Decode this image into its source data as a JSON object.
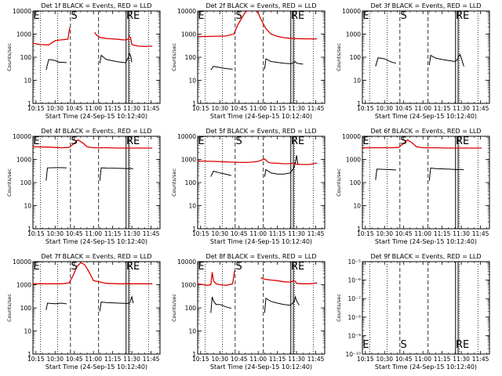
{
  "common": {
    "xlabel": "Start Time (24-Sep-15 10:12:40)",
    "ylabel": "Counts/sec",
    "x_ticks": [
      "10:15",
      "10:30",
      "10:45",
      "11:00",
      "11:15",
      "11:30",
      "11:45"
    ],
    "x_tick_minutes": [
      15,
      30,
      45,
      60,
      75,
      90,
      105
    ],
    "xlim_minutes": [
      12.67,
      112
    ],
    "y_ticks": [
      "1",
      "10",
      "100",
      "1000",
      "10000"
    ],
    "y_tick_values": [
      1,
      10,
      100,
      1000,
      10000
    ],
    "colors": {
      "events": "#000000",
      "lld": "#dd0000"
    },
    "markers": [
      "E",
      "S",
      "RE"
    ],
    "dotted_lines_minutes": [
      18.5,
      32,
      88.5,
      103
    ],
    "dashed_lines_minutes": [
      42,
      64
    ],
    "solid_lines_minutes": [
      85.5,
      87.5
    ]
  },
  "chart_data": [
    {
      "type": "line",
      "title": "Det 1f BLACK = Events, RED = LLD",
      "ylim": [
        1,
        10000
      ],
      "series": [
        {
          "name": "Events",
          "color": "#000000",
          "segments": [
            {
              "x": [
                23,
                25,
                30,
                33,
                36,
                39
              ],
              "y": [
                28,
                80,
                72,
                60,
                60,
                58
              ]
            },
            {
              "x": [
                65,
                66,
                70,
                75,
                80,
                85,
                87,
                88,
                89,
                90
              ],
              "y": [
                55,
                120,
                80,
                70,
                62,
                58,
                90,
                140,
                120,
                60
              ]
            }
          ]
        },
        {
          "name": "LLD",
          "color": "#dd0000",
          "segments": [
            {
              "x": [
                12.7,
                18,
                25,
                30,
                35,
                40,
                41.5
              ],
              "y": [
                400,
                350,
                340,
                520,
                560,
                600,
                2000
              ]
            },
            {
              "x": [
                61,
                62,
                65,
                70,
                75,
                80,
                83,
                85,
                87,
                88,
                89,
                90,
                95,
                100,
                106
              ],
              "y": [
                1200,
                950,
                720,
                640,
                620,
                590,
                560,
                560,
                600,
                800,
                700,
                350,
                300,
                290,
                300
              ]
            }
          ]
        }
      ]
    },
    {
      "type": "line",
      "title": "Det 2f BLACK = Events, RED = LLD",
      "ylim": [
        1,
        10000
      ],
      "series": [
        {
          "name": "Events",
          "color": "#000000",
          "segments": [
            {
              "x": [
                23,
                25,
                30,
                35,
                40
              ],
              "y": [
                28,
                40,
                36,
                32,
                30
              ]
            },
            {
              "x": [
                65,
                66,
                70,
                80,
                86,
                88,
                89,
                90,
                95
              ],
              "y": [
                30,
                85,
                65,
                55,
                52,
                60,
                65,
                55,
                50
              ]
            }
          ]
        },
        {
          "name": "LLD",
          "color": "#dd0000",
          "segments": [
            {
              "x": [
                12.7,
                25,
                35,
                41,
                44,
                50,
                56,
                60,
                63,
                66,
                70,
                75,
                80,
                85,
                90,
                100,
                106
              ],
              "y": [
                780,
                800,
                830,
                1000,
                2500,
                9000,
                13000,
                8000,
                3500,
                1700,
                1000,
                800,
                700,
                660,
                630,
                620,
                620
              ]
            }
          ]
        }
      ]
    },
    {
      "type": "line",
      "title": "Det 3f BLACK = Events, RED = LLD",
      "ylim": [
        1,
        10000
      ],
      "series": [
        {
          "name": "Events",
          "color": "#000000",
          "segments": [
            {
              "x": [
                23,
                25,
                30,
                33,
                36,
                39
              ],
              "y": [
                40,
                95,
                85,
                70,
                60,
                55
              ]
            },
            {
              "x": [
                65,
                66,
                70,
                75,
                80,
                85,
                87,
                88,
                89,
                90,
                92
              ],
              "y": [
                45,
                120,
                90,
                80,
                72,
                65,
                80,
                110,
                130,
                90,
                40
              ]
            }
          ]
        }
      ]
    },
    {
      "type": "line",
      "title": "Det 4f BLACK = Events, RED = LLD",
      "ylim": [
        1,
        10000
      ],
      "series": [
        {
          "name": "Events",
          "color": "#000000",
          "segments": [
            {
              "x": [
                23,
                24,
                30,
                35,
                38,
                39
              ],
              "y": [
                120,
                430,
                440,
                440,
                430,
                430
              ]
            },
            {
              "x": [
                65,
                66,
                70,
                80,
                88,
                89,
                90,
                91
              ],
              "y": [
                120,
                430,
                420,
                410,
                400,
                410,
                400,
                400
              ]
            }
          ]
        },
        {
          "name": "LLD",
          "color": "#dd0000",
          "segments": [
            {
              "x": [
                12.7,
                25,
                35,
                41,
                44,
                48,
                52,
                55,
                60,
                70,
                80,
                90,
                106
              ],
              "y": [
                3500,
                3400,
                3200,
                3300,
                4500,
                7000,
                5000,
                3500,
                3200,
                3200,
                3100,
                3100,
                3100
              ]
            }
          ]
        }
      ]
    },
    {
      "type": "line",
      "title": "Det 5f BLACK = Events, RED = LLD",
      "ylim": [
        1,
        10000
      ],
      "series": [
        {
          "name": "Events",
          "color": "#000000",
          "segments": [
            {
              "x": [
                23,
                25,
                30,
                33,
                36,
                39
              ],
              "y": [
                180,
                310,
                260,
                240,
                220,
                200
              ]
            },
            {
              "x": [
                65,
                66,
                70,
                75,
                80,
                85,
                88,
                89,
                90,
                91
              ],
              "y": [
                180,
                360,
                260,
                230,
                230,
                260,
                450,
                700,
                1500,
                600
              ]
            }
          ]
        },
        {
          "name": "LLD",
          "color": "#dd0000",
          "segments": [
            {
              "x": [
                12.7,
                25,
                35,
                40,
                45,
                50,
                55,
                60,
                65,
                68,
                70,
                75,
                80,
                85,
                88,
                90,
                95,
                100,
                106
              ],
              "y": [
                850,
                820,
                780,
                760,
                740,
                740,
                760,
                820,
                1050,
                750,
                700,
                680,
                650,
                650,
                700,
                620,
                600,
                600,
                700
              ]
            }
          ]
        }
      ]
    },
    {
      "type": "line",
      "title": "Det 6f BLACK = Events, RED = LLD",
      "ylim": [
        1,
        10000
      ],
      "series": [
        {
          "name": "Events",
          "color": "#000000",
          "segments": [
            {
              "x": [
                23,
                24,
                30,
                35,
                38,
                39
              ],
              "y": [
                130,
                380,
                370,
                360,
                350,
                350
              ]
            },
            {
              "x": [
                65,
                66,
                70,
                80,
                88,
                89,
                90,
                92
              ],
              "y": [
                120,
                420,
                400,
                380,
                360,
                380,
                360,
                360
              ]
            }
          ]
        },
        {
          "name": "LLD",
          "color": "#dd0000",
          "segments": [
            {
              "x": [
                12.7,
                25,
                35,
                41,
                44,
                48,
                52,
                55,
                60,
                70,
                80,
                90,
                106
              ],
              "y": [
                3200,
                3200,
                3200,
                3300,
                4500,
                7000,
                5000,
                3500,
                3200,
                3200,
                3100,
                3100,
                3100
              ]
            }
          ]
        }
      ]
    },
    {
      "type": "line",
      "title": "Det 7f BLACK = Events, RED = LLD",
      "ylim": [
        1,
        10000
      ],
      "series": [
        {
          "name": "Events",
          "color": "#000000",
          "segments": [
            {
              "x": [
                23,
                24,
                30,
                35,
                38,
                39
              ],
              "y": [
                80,
                160,
                150,
                160,
                150,
                150
              ]
            },
            {
              "x": [
                65,
                66,
                70,
                80,
                86,
                88,
                89,
                90,
                91
              ],
              "y": [
                70,
                180,
                170,
                160,
                155,
                160,
                200,
                300,
                160
              ]
            }
          ]
        },
        {
          "name": "LLD",
          "color": "#dd0000",
          "segments": [
            {
              "x": [
                12.7,
                25,
                35,
                41,
                44,
                47,
                50,
                53,
                56,
                60,
                70,
                80,
                90,
                106
              ],
              "y": [
                1100,
                1100,
                1100,
                1200,
                2500,
                6000,
                9000,
                7500,
                4000,
                1500,
                1150,
                1100,
                1100,
                1100
              ]
            }
          ]
        }
      ]
    },
    {
      "type": "line",
      "title": "Det 8f BLACK = Events, RED = LLD",
      "ylim": [
        1,
        10000
      ],
      "series": [
        {
          "name": "Events",
          "color": "#000000",
          "segments": [
            {
              "x": [
                23,
                24,
                25,
                27,
                30,
                35,
                39
              ],
              "y": [
                60,
                300,
                200,
                140,
                140,
                110,
                95
              ]
            },
            {
              "x": [
                65,
                66,
                70,
                75,
                80,
                85,
                88,
                89,
                90,
                92
              ],
              "y": [
                60,
                260,
                190,
                160,
                140,
                130,
                180,
                300,
                200,
                130
              ]
            }
          ]
        },
        {
          "name": "LLD",
          "color": "#dd0000",
          "segments": [
            {
              "x": [
                12.7,
                20,
                23,
                24,
                25,
                27,
                30,
                35,
                40,
                41.5
              ],
              "y": [
                1100,
                950,
                1000,
                3500,
                1500,
                1100,
                1000,
                950,
                1100,
                4000
              ]
            },
            {
              "x": [
                62,
                64,
                66,
                70,
                75,
                80,
                85,
                88,
                89,
                90,
                95,
                100,
                106
              ],
              "y": [
                2000,
                1800,
                1700,
                1600,
                1500,
                1350,
                1300,
                1500,
                1400,
                1150,
                1100,
                1100,
                1200
              ]
            }
          ]
        }
      ]
    },
    {
      "type": "line",
      "title": "Det 9f BLACK = Events, RED = LLD",
      "ylim": [
        1e-10,
        1e-05
      ],
      "y_ticks": [
        "10⁻¹⁰",
        "10⁻⁹",
        "10⁻⁸",
        "10⁻⁷",
        "10⁻⁶",
        "10⁻⁵"
      ],
      "y_tick_values": [
        1e-10,
        1e-09,
        1e-08,
        1e-07,
        1e-06,
        1e-05
      ],
      "series": []
    }
  ]
}
